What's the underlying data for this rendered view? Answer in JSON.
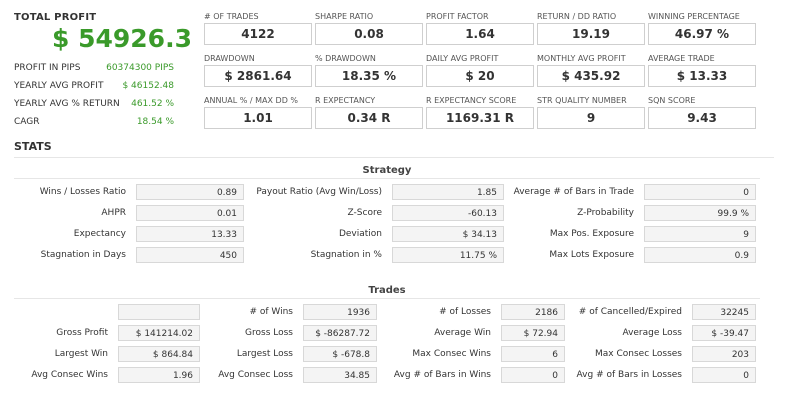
{
  "summary": {
    "total_profit_label": "TOTAL PROFIT",
    "total_profit_value": "$ 54926.3",
    "rows": [
      {
        "label": "PROFIT IN PIPS",
        "value": "60374300 PIPS"
      },
      {
        "label": "YEARLY AVG PROFIT",
        "value": "$ 46152.48"
      },
      {
        "label": "YEARLY AVG % RETURN",
        "value": "461.52 %"
      },
      {
        "label": "CAGR",
        "value": "18.54 %"
      }
    ]
  },
  "kpis": [
    {
      "label": "# OF TRADES",
      "value": "4122"
    },
    {
      "label": "SHARPE RATIO",
      "value": "0.08"
    },
    {
      "label": "PROFIT FACTOR",
      "value": "1.64"
    },
    {
      "label": "RETURN / DD RATIO",
      "value": "19.19"
    },
    {
      "label": "WINNING PERCENTAGE",
      "value": "46.97 %"
    },
    {
      "label": "DRAWDOWN",
      "value": "$ 2861.64"
    },
    {
      "label": "% DRAWDOWN",
      "value": "18.35 %"
    },
    {
      "label": "DAILY AVG PROFIT",
      "value": "$ 20"
    },
    {
      "label": "MONTHLY AVG PROFIT",
      "value": "$ 435.92"
    },
    {
      "label": "AVERAGE TRADE",
      "value": "$ 13.33"
    },
    {
      "label": "ANNUAL % / MAX DD %",
      "value": "1.01"
    },
    {
      "label": "R EXPECTANCY",
      "value": "0.34 R"
    },
    {
      "label": "R EXPECTANCY SCORE",
      "value": "1169.31 R"
    },
    {
      "label": "STR QUALITY NUMBER",
      "value": "9"
    },
    {
      "label": "SQN SCORE",
      "value": "9.43"
    }
  ],
  "stats_title": "STATS",
  "strategy": {
    "title": "Strategy",
    "rows": [
      [
        [
          "Wins / Losses Ratio",
          "0.89"
        ],
        [
          "Payout Ratio (Avg Win/Loss)",
          "1.85"
        ],
        [
          "Average # of Bars in Trade",
          "0"
        ]
      ],
      [
        [
          "AHPR",
          "0.01"
        ],
        [
          "Z-Score",
          "-60.13"
        ],
        [
          "Z-Probability",
          "99.9 %"
        ]
      ],
      [
        [
          "Expectancy",
          "13.33"
        ],
        [
          "Deviation",
          "$ 34.13"
        ],
        [
          "Max Pos. Exposure",
          "9"
        ]
      ],
      [
        [
          "Stagnation in Days",
          "450"
        ],
        [
          "Stagnation in %",
          "11.75 %"
        ],
        [
          "Max Lots Exposure",
          "0.9"
        ]
      ]
    ]
  },
  "trades": {
    "title": "Trades",
    "rows": [
      [
        [
          "",
          ""
        ],
        [
          "# of Wins",
          "1936"
        ],
        [
          "# of Losses",
          "2186"
        ],
        [
          "# of Cancelled/Expired",
          "32245"
        ]
      ],
      [
        [
          "Gross Profit",
          "$ 141214.02"
        ],
        [
          "Gross Loss",
          "$ -86287.72"
        ],
        [
          "Average Win",
          "$ 72.94"
        ],
        [
          "Average Loss",
          "$ -39.47"
        ]
      ],
      [
        [
          "Largest Win",
          "$ 864.84"
        ],
        [
          "Largest Loss",
          "$ -678.8"
        ],
        [
          "Max Consec Wins",
          "6"
        ],
        [
          "Max Consec Losses",
          "203"
        ]
      ],
      [
        [
          "Avg Consec Wins",
          "1.96"
        ],
        [
          "Avg Consec Loss",
          "34.85"
        ],
        [
          "Avg # of Bars in Wins",
          "0"
        ],
        [
          "Avg # of Bars in Losses",
          "0"
        ]
      ]
    ]
  }
}
